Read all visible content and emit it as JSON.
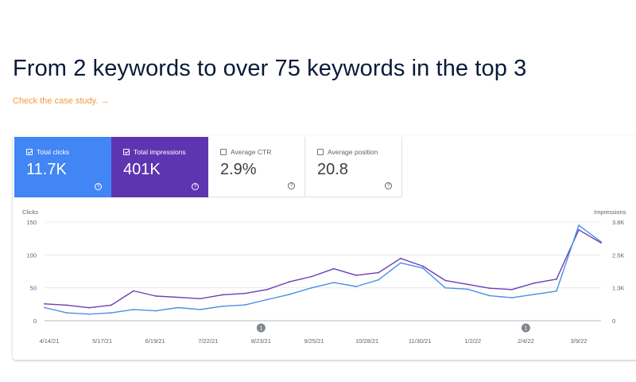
{
  "headline": "From 2 keywords to over 75 keywords in the top 3",
  "case_link": "Check the case study. →",
  "metrics": [
    {
      "label": "Total clicks",
      "value": "11.7K",
      "checked": true,
      "color": "#4285f4"
    },
    {
      "label": "Total impressions",
      "value": "401K",
      "checked": true,
      "color": "#5e35b1"
    },
    {
      "label": "Average CTR",
      "value": "2.9%",
      "checked": false
    },
    {
      "label": "Average position",
      "value": "20.8",
      "checked": false
    }
  ],
  "help_glyph": "?",
  "chart_data": {
    "type": "line",
    "ylabel_left": "Clicks",
    "ylabel_right": "Impressions",
    "yticks_left": [
      "150",
      "100",
      "50",
      "0"
    ],
    "ylim_left": [
      0,
      150
    ],
    "yticks_right": [
      "3.8K",
      "2.5K",
      "1.3K",
      "0"
    ],
    "ylim_right": [
      0,
      3800
    ],
    "x_tick_labels": [
      "4/14/21",
      "5/17/21",
      "6/19/21",
      "7/22/21",
      "8/23/21",
      "9/25/21",
      "10/28/21",
      "11/30/21",
      "1/2/22",
      "2/4/22",
      "3/9/22"
    ],
    "annotations": [
      {
        "label": "1",
        "at": "8/23/21"
      },
      {
        "label": "1",
        "at": "2/4/22"
      }
    ],
    "x": [
      "4/14/21",
      "4/28/21",
      "5/12/21",
      "5/26/21",
      "6/9/21",
      "6/23/21",
      "7/7/21",
      "7/21/21",
      "8/4/21",
      "8/18/21",
      "9/1/21",
      "9/15/21",
      "9/29/21",
      "10/13/21",
      "10/27/21",
      "11/10/21",
      "11/24/21",
      "12/8/21",
      "12/22/21",
      "1/5/22",
      "1/19/22",
      "2/2/22",
      "2/16/22",
      "3/2/22",
      "3/11/22",
      "3/14/22"
    ],
    "series": [
      {
        "name": "Clicks",
        "color": "#4a90e2",
        "axis": "left",
        "values": [
          20,
          12,
          10,
          12,
          17,
          15,
          20,
          17,
          22,
          24,
          32,
          40,
          50,
          58,
          52,
          62,
          88,
          80,
          50,
          48,
          38,
          35,
          40,
          45,
          145,
          120
        ]
      },
      {
        "name": "Impressions",
        "color": "#6a3fb5",
        "axis": "right",
        "values": [
          650,
          600,
          500,
          600,
          1150,
          950,
          900,
          850,
          1000,
          1050,
          1200,
          1500,
          1700,
          2000,
          1750,
          1850,
          2400,
          2100,
          1550,
          1400,
          1250,
          1200,
          1450,
          1600,
          3500,
          3000
        ]
      }
    ]
  }
}
